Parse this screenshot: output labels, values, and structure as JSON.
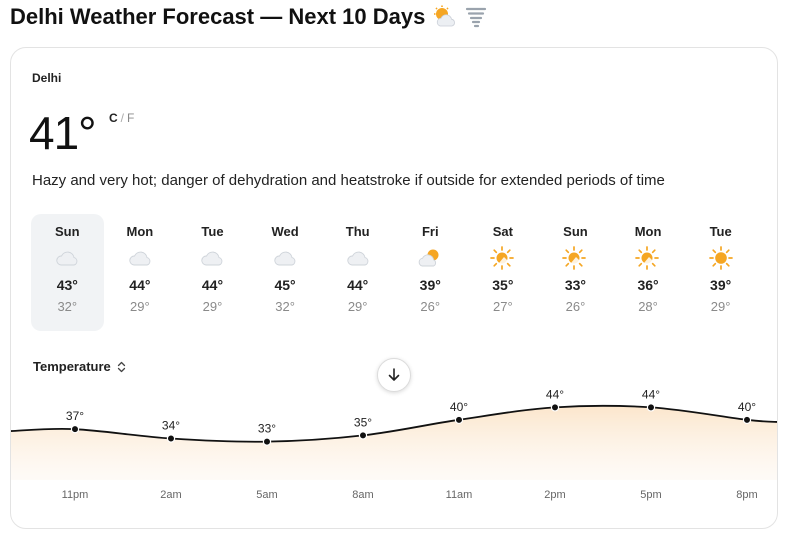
{
  "page": {
    "title": "Delhi Weather Forecast — Next 10 Days"
  },
  "current": {
    "location": "Delhi",
    "temperature": "41°",
    "unit_c": "C",
    "unit_sep": "/",
    "unit_f": "F",
    "summary": "Hazy and very hot; danger of dehydration and heatstroke if outside for extended periods of time"
  },
  "days": [
    {
      "name": "Sun",
      "high": "43°",
      "low": "32°",
      "icon": "cloud-icon",
      "selected": true
    },
    {
      "name": "Mon",
      "high": "44°",
      "low": "29°",
      "icon": "cloud-icon"
    },
    {
      "name": "Tue",
      "high": "44°",
      "low": "29°",
      "icon": "cloud-icon"
    },
    {
      "name": "Wed",
      "high": "45°",
      "low": "32°",
      "icon": "cloud-icon"
    },
    {
      "name": "Thu",
      "high": "44°",
      "low": "29°",
      "icon": "cloud-icon"
    },
    {
      "name": "Fri",
      "high": "39°",
      "low": "26°",
      "icon": "partly-cloudy-icon"
    },
    {
      "name": "Sat",
      "high": "35°",
      "low": "27°",
      "icon": "sun-behind-cloud-icon"
    },
    {
      "name": "Sun",
      "high": "33°",
      "low": "26°",
      "icon": "sun-behind-cloud-icon"
    },
    {
      "name": "Mon",
      "high": "36°",
      "low": "28°",
      "icon": "sun-behind-cloud-icon"
    },
    {
      "name": "Tue",
      "high": "39°",
      "low": "29°",
      "icon": "sun-icon"
    }
  ],
  "metric": {
    "label": "Temperature"
  },
  "chart_data": {
    "type": "area",
    "x": [
      "11pm",
      "2am",
      "5am",
      "8am",
      "11am",
      "2pm",
      "5pm",
      "8pm"
    ],
    "values": [
      37,
      34,
      33,
      35,
      40,
      44,
      44,
      40
    ],
    "labels": [
      "37°",
      "34°",
      "33°",
      "35°",
      "40°",
      "44°",
      "44°",
      "40°"
    ],
    "line_color": "#111111",
    "fill_color": "#fbe3c6",
    "grid": false
  },
  "colors": {
    "sun": "#f5a623",
    "cloud": "#e6e9ee",
    "selected_bg": "#f1f3f5"
  }
}
